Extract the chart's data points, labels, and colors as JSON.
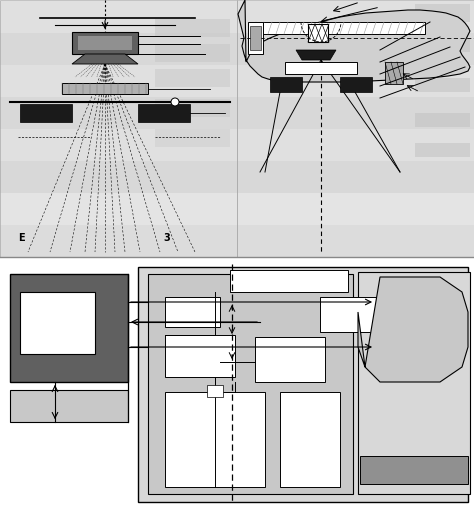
{
  "white": "#ffffff",
  "light_gray": "#c8c8c8",
  "mid_gray": "#909090",
  "dark_gray": "#606060",
  "very_dark": "#1a1a1a",
  "black": "#000000",
  "bg_stripe1": "#e8e8e8",
  "bg_stripe2": "#d8d8d8",
  "panel_light": "#d0d0d0",
  "panel_mid": "#b8b8b8",
  "equip_bg": "#c8c8c8",
  "treat_bg": "#d4d4d4"
}
